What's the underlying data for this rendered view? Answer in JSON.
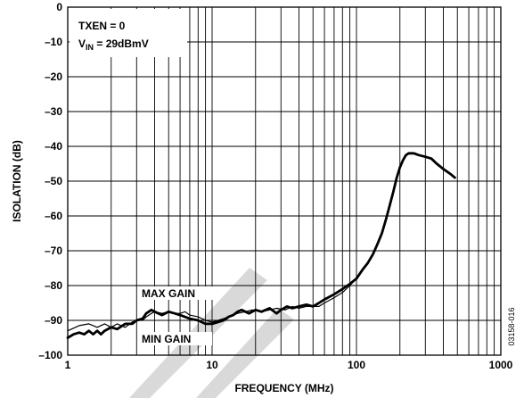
{
  "chart_data": {
    "type": "line",
    "xlabel": "FREQUENCY (MHz)",
    "ylabel": "ISOLATION (dB)",
    "x_scale": "log",
    "xlim": [
      1,
      1000
    ],
    "ylim": [
      -100,
      0
    ],
    "x_ticks": [
      "1",
      "10",
      "100",
      "1000"
    ],
    "y_ticks": [
      "0",
      "–10",
      "–20",
      "–30",
      "–40",
      "–50",
      "–60",
      "–70",
      "–80",
      "–90",
      "–100"
    ],
    "grid": true,
    "annotations": {
      "condition_1": "TXEN = 0",
      "condition_2_prefix": "V",
      "condition_2_sub": "IN",
      "condition_2_suffix": " = 29dBmV"
    },
    "figure_id": "03158-016",
    "series": [
      {
        "name": "MAX GAIN",
        "points": [
          [
            1,
            -93
          ],
          [
            1.2,
            -91.5
          ],
          [
            1.4,
            -91
          ],
          [
            1.6,
            -92
          ],
          [
            1.8,
            -91
          ],
          [
            2,
            -92
          ],
          [
            2.2,
            -91
          ],
          [
            2.5,
            -92
          ],
          [
            2.8,
            -90.5
          ],
          [
            3,
            -90
          ],
          [
            3.3,
            -90
          ],
          [
            3.5,
            -89
          ],
          [
            3.8,
            -88
          ],
          [
            4,
            -87.5
          ],
          [
            4.5,
            -88
          ],
          [
            5,
            -87.5
          ],
          [
            5.5,
            -88
          ],
          [
            6,
            -88
          ],
          [
            6.5,
            -87.5
          ],
          [
            7,
            -88.5
          ],
          [
            8,
            -89
          ],
          [
            9,
            -90
          ],
          [
            10,
            -90.5
          ],
          [
            11,
            -90
          ],
          [
            12,
            -89.5
          ],
          [
            13,
            -89
          ],
          [
            14,
            -88.5
          ],
          [
            15,
            -88
          ],
          [
            17,
            -87.5
          ],
          [
            19,
            -87
          ],
          [
            22,
            -87.5
          ],
          [
            25,
            -87
          ],
          [
            28,
            -86.5
          ],
          [
            32,
            -87
          ],
          [
            36,
            -86
          ],
          [
            40,
            -86.5
          ],
          [
            45,
            -86
          ],
          [
            50,
            -86
          ],
          [
            55,
            -86
          ],
          [
            60,
            -85
          ],
          [
            70,
            -83.5
          ],
          [
            80,
            -82
          ],
          [
            90,
            -80
          ],
          [
            100,
            -78
          ]
        ],
        "color": "#000000"
      },
      {
        "name": "MIN GAIN",
        "points": [
          [
            1,
            -95
          ],
          [
            1.1,
            -94
          ],
          [
            1.2,
            -93.5
          ],
          [
            1.3,
            -94
          ],
          [
            1.4,
            -93
          ],
          [
            1.5,
            -94
          ],
          [
            1.6,
            -93
          ],
          [
            1.7,
            -94
          ],
          [
            1.8,
            -93
          ],
          [
            2,
            -92
          ],
          [
            2.2,
            -92.5
          ],
          [
            2.5,
            -91
          ],
          [
            2.8,
            -91
          ],
          [
            3,
            -90
          ],
          [
            3.3,
            -89.5
          ],
          [
            3.5,
            -88
          ],
          [
            3.8,
            -87
          ],
          [
            4,
            -87.5
          ],
          [
            4.5,
            -88.5
          ],
          [
            5,
            -87.5
          ],
          [
            5.5,
            -88
          ],
          [
            6,
            -88.5
          ],
          [
            7,
            -89.5
          ],
          [
            8,
            -90
          ],
          [
            9,
            -91
          ],
          [
            10,
            -91
          ],
          [
            11,
            -90.5
          ],
          [
            12,
            -90
          ],
          [
            13,
            -89
          ],
          [
            14,
            -88.5
          ],
          [
            15,
            -87.5
          ],
          [
            16,
            -87
          ],
          [
            18,
            -88
          ],
          [
            20,
            -87
          ],
          [
            22,
            -87.5
          ],
          [
            25,
            -86.5
          ],
          [
            28,
            -88
          ],
          [
            30,
            -87
          ],
          [
            33,
            -86
          ],
          [
            36,
            -86.5
          ],
          [
            40,
            -86
          ],
          [
            45,
            -85.5
          ],
          [
            50,
            -86
          ],
          [
            55,
            -85
          ],
          [
            60,
            -84
          ],
          [
            70,
            -82.5
          ],
          [
            80,
            -81
          ],
          [
            90,
            -79.5
          ],
          [
            100,
            -78
          ],
          [
            110,
            -75.5
          ],
          [
            120,
            -73.5
          ],
          [
            130,
            -71
          ],
          [
            140,
            -68
          ],
          [
            150,
            -65
          ],
          [
            160,
            -61
          ],
          [
            170,
            -57
          ],
          [
            180,
            -53
          ],
          [
            190,
            -49
          ],
          [
            200,
            -46
          ],
          [
            210,
            -44
          ],
          [
            220,
            -42.5
          ],
          [
            230,
            -42
          ],
          [
            250,
            -42
          ],
          [
            270,
            -42.5
          ],
          [
            300,
            -43
          ],
          [
            330,
            -43.5
          ],
          [
            360,
            -45
          ],
          [
            400,
            -46.5
          ],
          [
            450,
            -48
          ],
          [
            480,
            -49
          ]
        ],
        "color": "#000000"
      }
    ],
    "series_labels": {
      "max": "MAX GAIN",
      "min": "MIN GAIN"
    }
  }
}
